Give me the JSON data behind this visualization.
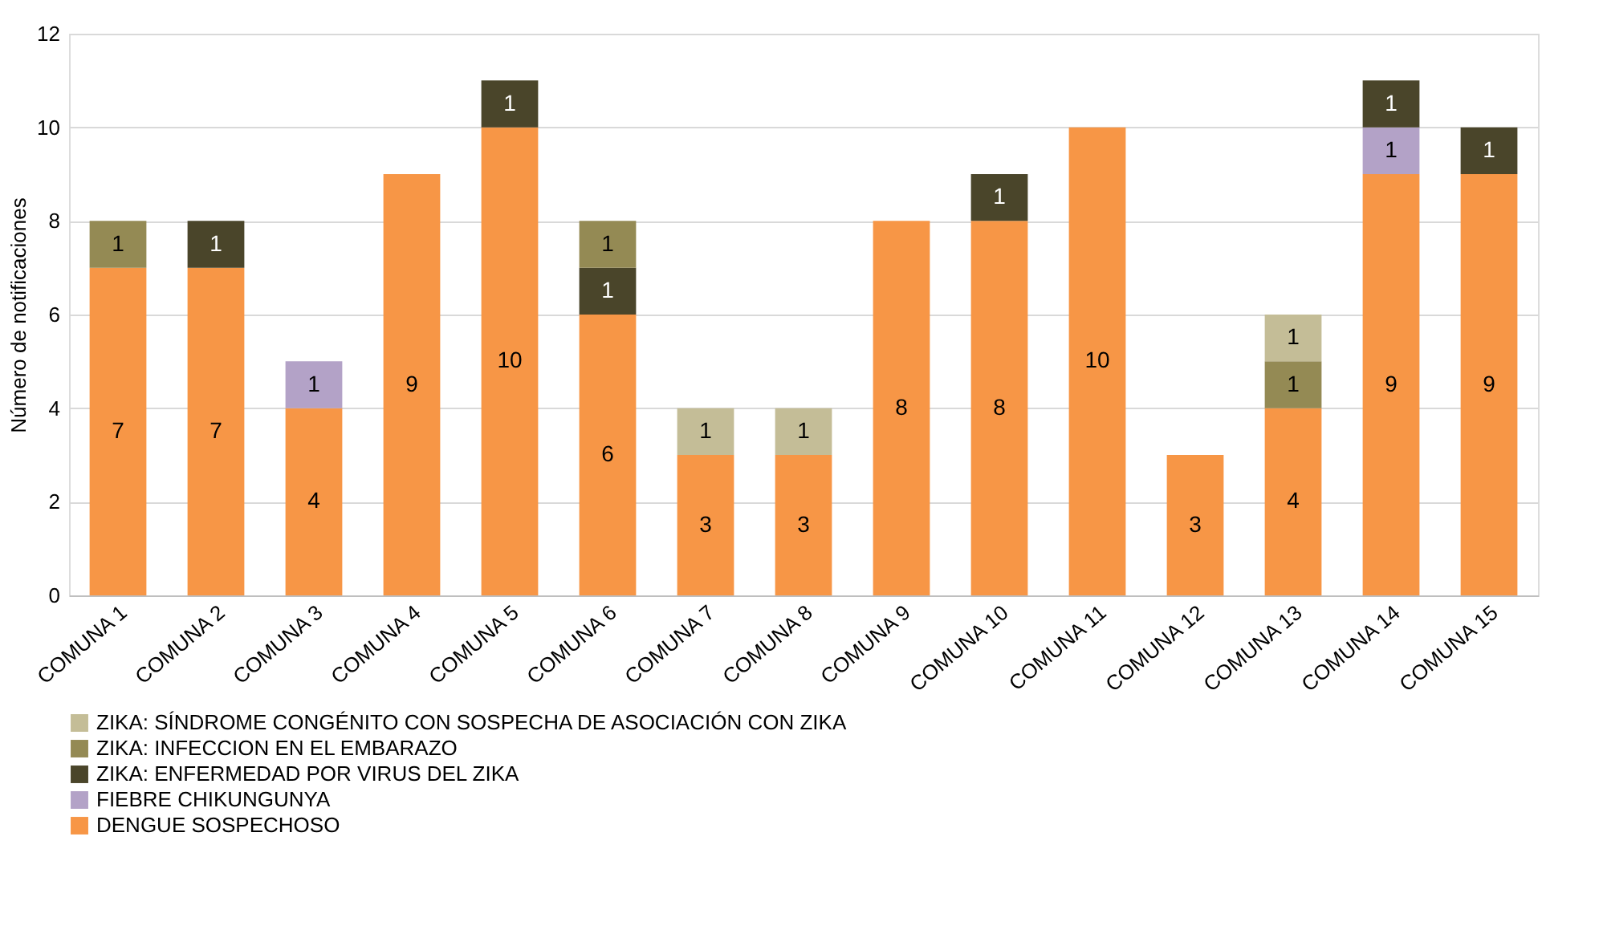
{
  "chart_data": {
    "type": "bar",
    "stacked": true,
    "ylabel": "Número de notificaciones",
    "categories": [
      "COMUNA 1",
      "COMUNA 2",
      "COMUNA 3",
      "COMUNA 4",
      "COMUNA 5",
      "COMUNA 6",
      "COMUNA 7",
      "COMUNA 8",
      "COMUNA 9",
      "COMUNA 10",
      "COMUNA 11",
      "COMUNA 12",
      "COMUNA 13",
      "COMUNA 14",
      "COMUNA 15"
    ],
    "ylim": [
      0,
      12
    ],
    "yticks": [
      0,
      2,
      4,
      6,
      8,
      10,
      12
    ],
    "grid": "y",
    "legend": "bottom",
    "data_labels": true,
    "series": [
      {
        "name": "DENGUE SOSPECHOSO",
        "color": "#f79646",
        "values": [
          7,
          7,
          4,
          9,
          10,
          6,
          3,
          3,
          8,
          8,
          10,
          3,
          4,
          9,
          9
        ]
      },
      {
        "name": "FIEBRE CHIKUNGUNYA",
        "color": "#b3a2c7",
        "values": [
          null,
          null,
          1,
          null,
          null,
          null,
          null,
          null,
          null,
          null,
          null,
          null,
          null,
          1,
          null
        ]
      },
      {
        "name": "ZIKA: ENFERMEDAD POR VIRUS DEL ZIKA",
        "color": "#4a452a",
        "values": [
          null,
          1,
          null,
          null,
          1,
          1,
          null,
          null,
          null,
          1,
          null,
          null,
          null,
          1,
          1
        ]
      },
      {
        "name": "ZIKA: INFECCION  EN EL EMBARAZO",
        "color": "#948a54",
        "values": [
          1,
          null,
          null,
          null,
          null,
          1,
          null,
          null,
          null,
          null,
          null,
          null,
          1,
          null,
          null
        ]
      },
      {
        "name": "ZIKA: SÍNDROME CONGÉNITO CON SOSPECHA DE ASOCIACIÓN CON ZIKA",
        "color": "#c4bd97",
        "values": [
          null,
          null,
          null,
          null,
          null,
          null,
          1,
          1,
          null,
          null,
          null,
          null,
          1,
          null,
          null
        ]
      }
    ]
  }
}
